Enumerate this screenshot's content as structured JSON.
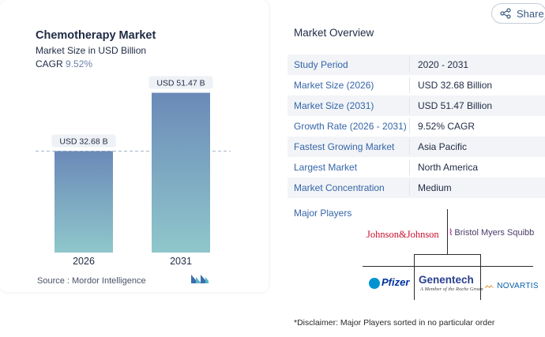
{
  "chart_data": {
    "type": "bar",
    "title": "Chemotherapy Market",
    "subtitle": "Market Size in USD Billion",
    "cagr_label": "CAGR",
    "cagr_value": "9.52%",
    "categories": [
      "2026",
      "2031"
    ],
    "values": [
      32.68,
      51.47
    ],
    "value_labels": [
      "USD 32.68 B",
      "USD 51.47 B"
    ],
    "colors": {
      "bar_top": "#6b8ab8",
      "bar_bottom": "#8fc7cb",
      "reference_line": "#a7b6c8"
    },
    "reference_line_at": 32.68,
    "ylim": [
      0,
      60
    ]
  },
  "source": "Source :  Mordor Intelligence",
  "share": {
    "label": "Share",
    "icon": "share-icon"
  },
  "market_overview": {
    "title": "Market Overview",
    "rows": [
      {
        "key": "Study Period",
        "value": "2020 - 2031"
      },
      {
        "key": "Market Size (2026)",
        "value": "USD 32.68 Billion"
      },
      {
        "key": "Market Size (2031)",
        "value": "USD 51.47 Billion"
      },
      {
        "key": "Growth Rate (2026 - 2031)",
        "value": "9.52% CAGR"
      },
      {
        "key": "Fastest Growing Market",
        "value": "Asia Pacific"
      },
      {
        "key": "Largest Market",
        "value": "North America"
      },
      {
        "key": "Market Concentration",
        "value": "Medium"
      }
    ],
    "major_players_label": "Major Players"
  },
  "players": {
    "johnson": "Johnson&Johnson",
    "bms": "Bristol Myers Squibb",
    "pfizer": "Pfizer",
    "genentech": "Genentech",
    "genentech_sub": "A Member of the Roche Group",
    "novartis": "NOVARTIS"
  },
  "disclaimer": "*Disclaimer: Major Players sorted in no particular order"
}
